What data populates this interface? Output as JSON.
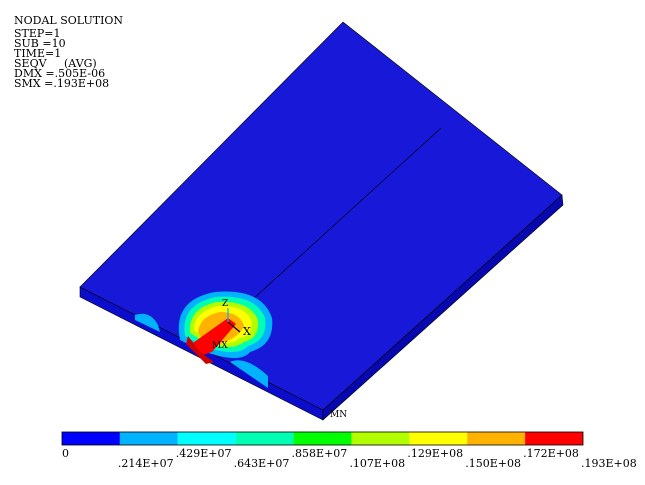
{
  "header": {
    "lines": [
      "NODAL SOLUTION",
      "STEP=1",
      "SUB =10",
      "TIME=1",
      "SEQV     (AVG)",
      "DMX =.505E-06",
      "SMX =.193E+08"
    ]
  },
  "markers": {
    "max": "MX",
    "min": "MN",
    "axis_x": "X",
    "axis_z": "Z"
  },
  "legend": {
    "labels": [
      "0",
      ".214E+07",
      ".429E+07",
      ".643E+07",
      ".858E+07",
      ".107E+08",
      ".129E+08",
      ".150E+08",
      ".172E+08",
      ".193E+08"
    ],
    "colors": [
      "#0000ff",
      "#00b2ff",
      "#00ffff",
      "#00ffb2",
      "#00ff00",
      "#b2ff00",
      "#ffff00",
      "#ffb200",
      "#ff0000"
    ]
  }
}
